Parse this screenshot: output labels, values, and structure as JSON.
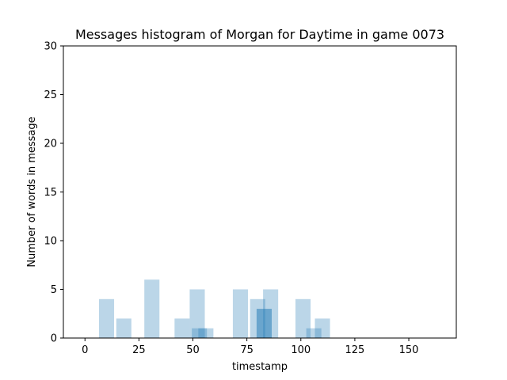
{
  "chart_data": {
    "type": "bar",
    "title": "Messages histogram of Morgan for Daytime in game 0073",
    "xlabel": "timestamp",
    "ylabel": "Number of words in message",
    "xlim": [
      -10,
      172
    ],
    "ylim": [
      0,
      30
    ],
    "xticks": [
      0,
      25,
      50,
      75,
      100,
      125,
      150
    ],
    "yticks": [
      0,
      5,
      10,
      15,
      20,
      25,
      30
    ],
    "grid": false,
    "bar_color": "#1f77b4",
    "bar_opacity": 0.3,
    "bars": [
      {
        "x": 10,
        "y": 4
      },
      {
        "x": 18,
        "y": 2
      },
      {
        "x": 31,
        "y": 6
      },
      {
        "x": 45,
        "y": 2
      },
      {
        "x": 52,
        "y": 5
      },
      {
        "x": 53,
        "y": 1
      },
      {
        "x": 56,
        "y": 1
      },
      {
        "x": 72,
        "y": 5
      },
      {
        "x": 80,
        "y": 4
      },
      {
        "x": 83,
        "y": 3
      },
      {
        "x": 83,
        "y": 3
      },
      {
        "x": 86,
        "y": 5
      },
      {
        "x": 101,
        "y": 4
      },
      {
        "x": 106,
        "y": 1
      },
      {
        "x": 110,
        "y": 2
      }
    ],
    "bar_width": 7
  }
}
